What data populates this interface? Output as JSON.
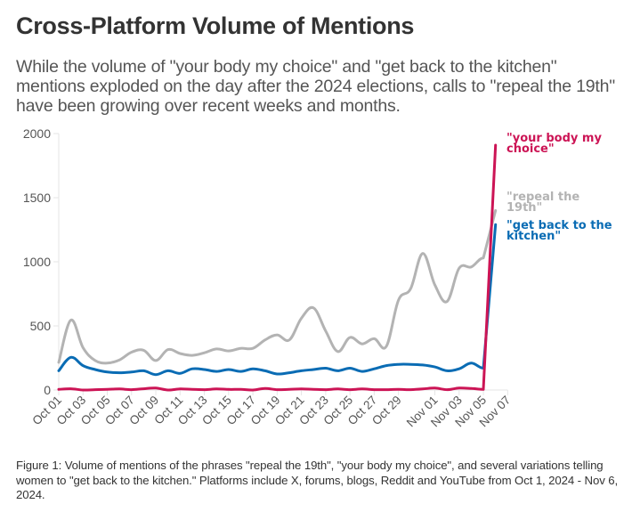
{
  "header": {
    "title": "Cross-Platform Volume of Mentions",
    "subtitle": "While the volume of \"your body my choice\" and \"get back to the kitchen\" mentions exploded on the day after the 2024 elections, calls to \"repeal the 19th\" have been growing over recent weeks and months."
  },
  "caption": "Figure 1: Volume of mentions of the phrases \"repeal the 19th\", \"your body my choice\", and several variations telling women to \"get back to the kitchen.\" Platforms include X, forums, blogs, Reddit and YouTube from Oct 1, 2024 - Nov 6, 2024.",
  "chart_data": {
    "type": "line",
    "title": "Cross-Platform Volume of Mentions",
    "xlabel": "",
    "ylabel": "",
    "ylim": [
      0,
      2000
    ],
    "xlim": [
      "Oct 01",
      "Nov 07"
    ],
    "grid": false,
    "legend": "direct labels at right end of lines",
    "yticks": [
      0,
      500,
      1000,
      1500,
      2000
    ],
    "xticks": [
      "Oct 01",
      "Oct 03",
      "Oct 05",
      "Oct 07",
      "Oct 09",
      "Oct 11",
      "Oct 13",
      "Oct 15",
      "Oct 17",
      "Oct 19",
      "Oct 21",
      "Oct 23",
      "Oct 25",
      "Oct 27",
      "Oct 29",
      "Nov 01",
      "Nov 03",
      "Nov 05",
      "Nov 07"
    ],
    "xtick_day_index": [
      0,
      2,
      4,
      6,
      8,
      10,
      12,
      14,
      16,
      18,
      20,
      22,
      24,
      26,
      28,
      31,
      33,
      35,
      37
    ],
    "x": [
      "Oct 01",
      "Oct 02",
      "Oct 03",
      "Oct 04",
      "Oct 05",
      "Oct 06",
      "Oct 07",
      "Oct 08",
      "Oct 09",
      "Oct 10",
      "Oct 11",
      "Oct 12",
      "Oct 13",
      "Oct 14",
      "Oct 15",
      "Oct 16",
      "Oct 17",
      "Oct 18",
      "Oct 19",
      "Oct 20",
      "Oct 21",
      "Oct 22",
      "Oct 23",
      "Oct 24",
      "Oct 25",
      "Oct 26",
      "Oct 27",
      "Oct 28",
      "Oct 29",
      "Oct 30",
      "Oct 31",
      "Nov 01",
      "Nov 02",
      "Nov 03",
      "Nov 04",
      "Nov 05",
      "Nov 06"
    ],
    "series": [
      {
        "name": "\"repeal the 19th\"",
        "label_lines": [
          "\"repeal the",
          "19th\""
        ],
        "color": "#b3b3b3",
        "values": [
          215,
          545,
          330,
          230,
          210,
          235,
          295,
          310,
          230,
          315,
          285,
          270,
          290,
          320,
          305,
          325,
          325,
          390,
          430,
          390,
          560,
          640,
          460,
          300,
          410,
          360,
          400,
          340,
          700,
          790,
          1065,
          820,
          690,
          950,
          960,
          1030,
          1400
        ]
      },
      {
        "name": "\"get back to the kitchen\"",
        "label_lines": [
          "\"get back to the",
          "kitchen\""
        ],
        "color": "#0a6cb4",
        "values": [
          150,
          255,
          190,
          160,
          140,
          135,
          140,
          150,
          120,
          150,
          130,
          165,
          160,
          145,
          160,
          145,
          165,
          150,
          125,
          135,
          150,
          160,
          170,
          150,
          170,
          145,
          165,
          190,
          200,
          200,
          195,
          180,
          150,
          165,
          210,
          170,
          1290
        ]
      },
      {
        "name": "\"your body my choice\"",
        "label_lines": [
          "\"your body my",
          "choice\""
        ],
        "color": "#cc1455",
        "values": [
          5,
          10,
          0,
          3,
          5,
          8,
          3,
          10,
          15,
          0,
          8,
          5,
          3,
          8,
          5,
          5,
          0,
          12,
          3,
          5,
          8,
          5,
          3,
          8,
          3,
          8,
          3,
          3,
          5,
          3,
          8,
          15,
          3,
          15,
          12,
          5,
          1910
        ]
      }
    ]
  }
}
